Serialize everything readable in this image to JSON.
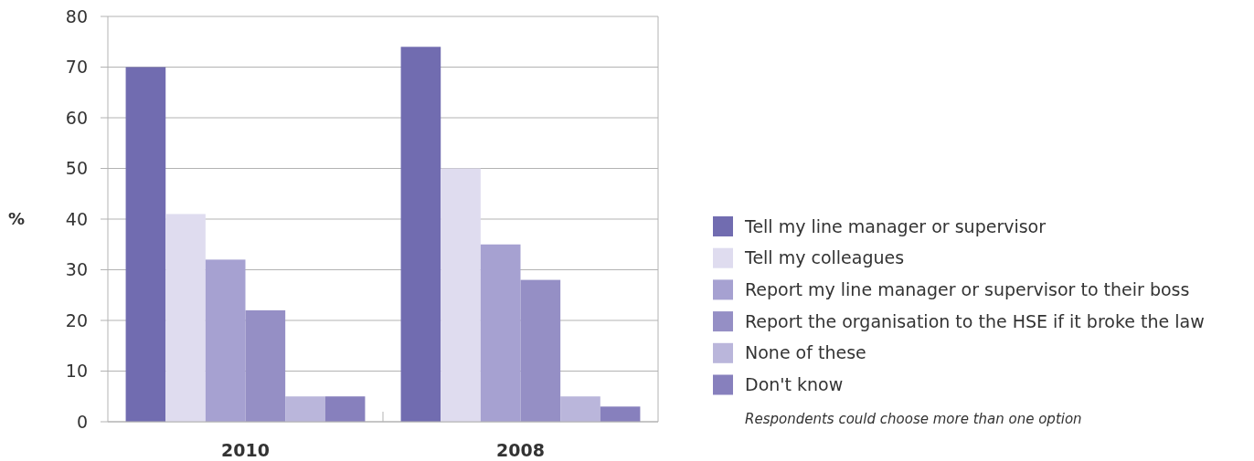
{
  "chart_data": {
    "type": "bar",
    "ylabel": "%",
    "categories": [
      "2010",
      "2008"
    ],
    "series": [
      {
        "name": "Tell my line manager or supervisor",
        "color": "#716cb0",
        "values": [
          70,
          74
        ]
      },
      {
        "name": "Tell my colleagues",
        "color": "#dfdcef",
        "values": [
          41,
          50
        ]
      },
      {
        "name": "Report my line manager or supervisor to their boss",
        "color": "#a6a1d1",
        "values": [
          32,
          35
        ]
      },
      {
        "name": "Report the organisation to the HSE if it broke the law",
        "color": "#958fc5",
        "values": [
          22,
          28
        ]
      },
      {
        "name": "None of these",
        "color": "#bab6db",
        "values": [
          5,
          5
        ]
      },
      {
        "name": "Don't know",
        "color": "#8780bd",
        "values": [
          5,
          3
        ]
      }
    ],
    "ylim": [
      0,
      80
    ],
    "yticks": [
      0,
      10,
      20,
      30,
      40,
      50,
      60,
      70,
      80
    ],
    "grid": "y",
    "legend": "right",
    "annotations": [
      "Respondents could choose more than one option"
    ]
  }
}
